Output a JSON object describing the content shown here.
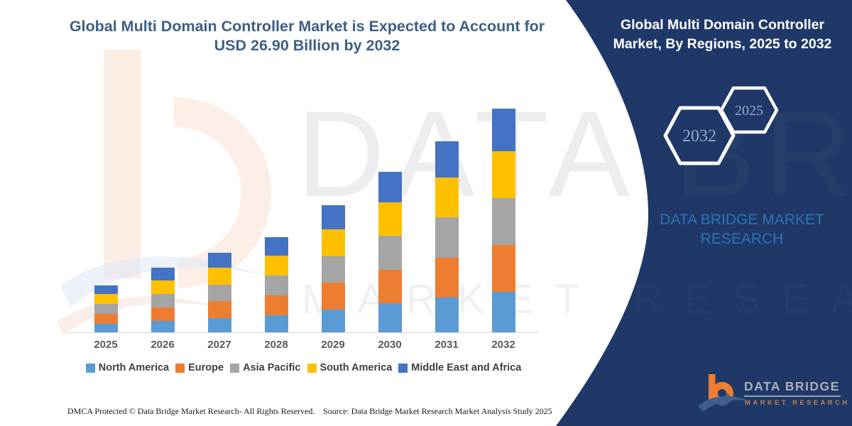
{
  "header": {
    "title": "Global Multi Domain Controller Market is Expected to Account for USD 26.90 Billion by 2032"
  },
  "panel": {
    "title": "Global Multi Domain Controller Market, By Regions, 2025 to 2032",
    "background_color": "#1f3868",
    "hexagons": [
      {
        "label": "2032"
      },
      {
        "label": "2025"
      }
    ],
    "brand_text": "DATA BRIDGE MARKET RESEARCH",
    "brand_text_color": "#2e74b5"
  },
  "chart_data": {
    "type": "bar",
    "stacked": true,
    "title": "Global Multi Domain Controller Market, By Regions, 2025 to 2032",
    "unit": "USD Billion",
    "categories": [
      "2025",
      "2026",
      "2027",
      "2028",
      "2029",
      "2030",
      "2031",
      "2032"
    ],
    "series": [
      {
        "name": "North America",
        "color": "#5B9BD5",
        "values": [
          1.02,
          1.4,
          1.73,
          2.06,
          2.75,
          3.48,
          4.15,
          4.84
        ]
      },
      {
        "name": "Europe",
        "color": "#ED7D31",
        "values": [
          1.19,
          1.62,
          2.02,
          2.4,
          3.21,
          4.06,
          4.84,
          5.65
        ]
      },
      {
        "name": "Asia Pacific",
        "color": "#A5A5A5",
        "values": [
          1.19,
          1.62,
          2.02,
          2.4,
          3.21,
          4.06,
          4.84,
          5.65
        ]
      },
      {
        "name": "South America",
        "color": "#FFC000",
        "values": [
          1.19,
          1.62,
          2.02,
          2.4,
          3.21,
          4.06,
          4.84,
          5.65
        ]
      },
      {
        "name": "Middle East and Africa",
        "color": "#4472C4",
        "values": [
          1.08,
          1.47,
          1.83,
          2.17,
          2.92,
          3.67,
          4.36,
          5.11
        ]
      }
    ],
    "totals": [
      5.67,
      7.73,
      9.62,
      11.43,
      15.3,
      19.33,
      23.03,
      26.9
    ],
    "highlight_value_2032": "USD 26.90 Billion",
    "ylim": [
      0,
      30
    ],
    "grid": false,
    "y_axis_visible": false,
    "legend_position": "bottom"
  },
  "watermark": {
    "line1": "DATA BRIDGE",
    "line2": "MARKET RESEARCH"
  },
  "footer": {
    "dmca": "DMCA Protected © Data Bridge Market Research- All Rights Reserved.",
    "source": "Source: Data Bridge Market Research Market Analysis Study 2025"
  },
  "logo": {
    "name": "DATA BRIDGE",
    "tagline": "MARKET  RESEARCH"
  }
}
